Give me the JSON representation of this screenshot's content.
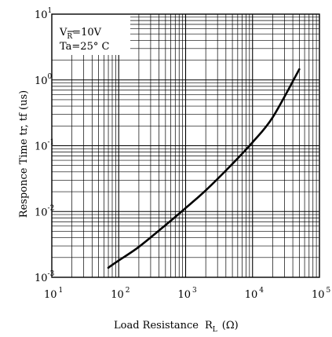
{
  "chart_data": {
    "type": "line",
    "xscale": "log",
    "yscale": "log",
    "xlim": [
      10,
      100000
    ],
    "ylim": [
      0.001,
      10
    ],
    "xlabel": "Load Resistance",
    "xlabel_symbol": "R",
    "xlabel_sub": "L",
    "xlabel_unit": "(Ω)",
    "ylabel": "Responce Time tr, tf (us)",
    "x_ticks": [
      {
        "base": "10",
        "exp": "1"
      },
      {
        "base": "10",
        "exp": "2"
      },
      {
        "base": "10",
        "exp": "3"
      },
      {
        "base": "10",
        "exp": "4"
      },
      {
        "base": "10",
        "exp": "5"
      }
    ],
    "y_ticks": [
      {
        "base": "10",
        "exp": "-3"
      },
      {
        "base": "10",
        "exp": "-2"
      },
      {
        "base": "10",
        "exp": "-1"
      },
      {
        "base": "10",
        "exp": "0"
      },
      {
        "base": "10",
        "exp": "1"
      }
    ],
    "annotation": {
      "line1_main": "V",
      "line1_sub": "R",
      "line1_rest": "=10V",
      "line2": "Ta=25° C"
    },
    "grid": true,
    "series": [
      {
        "x": [
          70,
          100,
          200,
          500,
          1000,
          2000,
          5000,
          10000,
          20000,
          50000
        ],
        "y": [
          0.0014,
          0.0018,
          0.0029,
          0.0062,
          0.0113,
          0.021,
          0.053,
          0.113,
          0.27,
          1.45
        ]
      }
    ]
  }
}
